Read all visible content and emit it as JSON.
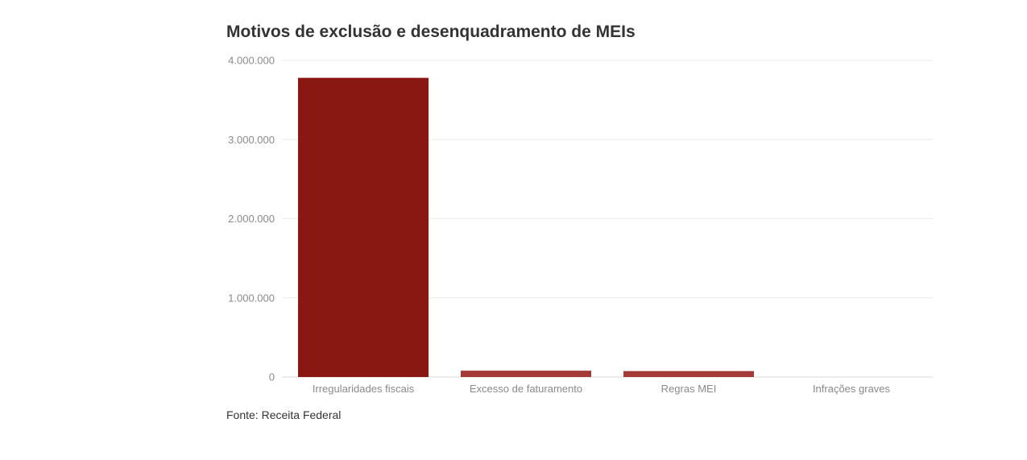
{
  "chart_data": {
    "type": "bar",
    "title": "Motivos de exclusão e desenquadramento de MEIs",
    "categories": [
      "Irregularidades fiscais",
      "Excesso de faturamento",
      "Regras MEI",
      "Infrações graves"
    ],
    "series": [
      {
        "values": [
          3780000,
          80000,
          75000,
          0
        ]
      }
    ],
    "y_ticks": [
      0,
      1000000,
      2000000,
      3000000,
      4000000
    ],
    "y_tick_labels": [
      "0",
      "1.000.000",
      "2.000.000",
      "3.000.000",
      "4.000.000"
    ],
    "ylim": [
      0,
      4000000
    ],
    "grid": true,
    "xlabel": "",
    "ylabel": "",
    "colors": [
      "#8a1812",
      "#a33a35",
      "#a33a35",
      "#a33a35"
    ]
  },
  "footer": {
    "source": "Fonte: Receita Federal"
  }
}
